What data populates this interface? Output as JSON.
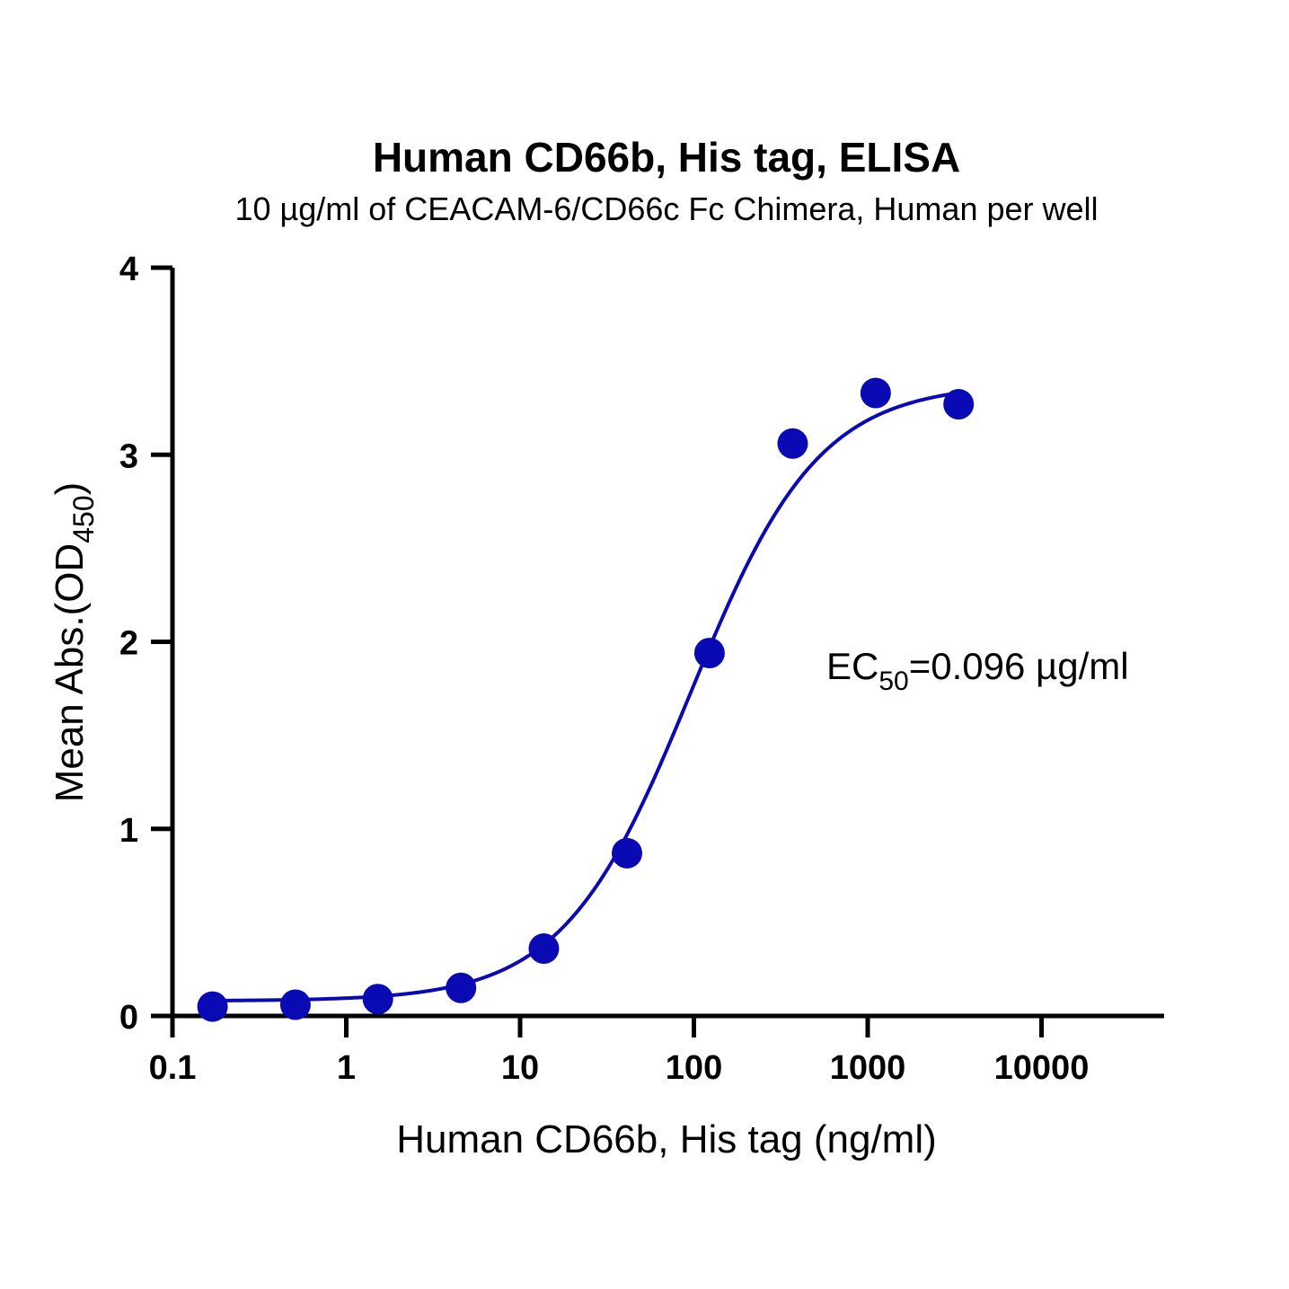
{
  "chart_data": {
    "type": "scatter",
    "title": "Human CD66b, His tag, ELISA",
    "subtitle": "10 µg/ml of CEACAM-6/CD66c Fc Chimera, Human per well",
    "xlabel": "Human CD66b, His tag (ng/ml)",
    "ylabel": {
      "main": "Mean Abs.(OD",
      "subscript": "450",
      "close": ")"
    },
    "x_scale": "log",
    "xlim": [
      0.1,
      50000
    ],
    "ylim": [
      0,
      4
    ],
    "x_ticks": [
      0.1,
      1,
      10,
      100,
      1000,
      10000
    ],
    "x_tick_labels": [
      "0.1",
      "1",
      "10",
      "100",
      "1000",
      "10000"
    ],
    "y_ticks": [
      0,
      1,
      2,
      3,
      4
    ],
    "y_tick_labels": [
      "0",
      "1",
      "2",
      "3",
      "4"
    ],
    "grid": false,
    "color": "#0A0AB4",
    "series": [
      {
        "points": [
          {
            "x": 0.17,
            "y": 0.05
          },
          {
            "x": 0.51,
            "y": 0.06
          },
          {
            "x": 1.52,
            "y": 0.09
          },
          {
            "x": 4.57,
            "y": 0.15
          },
          {
            "x": 13.7,
            "y": 0.36
          },
          {
            "x": 41.2,
            "y": 0.87
          },
          {
            "x": 123,
            "y": 1.94
          },
          {
            "x": 370,
            "y": 3.06
          },
          {
            "x": 1111,
            "y": 3.33
          },
          {
            "x": 3333,
            "y": 3.27
          }
        ]
      }
    ],
    "fit": {
      "model": "4PL",
      "bottom": 0.08,
      "top": 3.38,
      "ec50": 96,
      "hill": 1.18,
      "x_range": [
        0.17,
        3000
      ]
    },
    "annotation": {
      "prefix": "EC",
      "subscript": "50",
      "suffix": "=0.096 µg/ml"
    }
  }
}
